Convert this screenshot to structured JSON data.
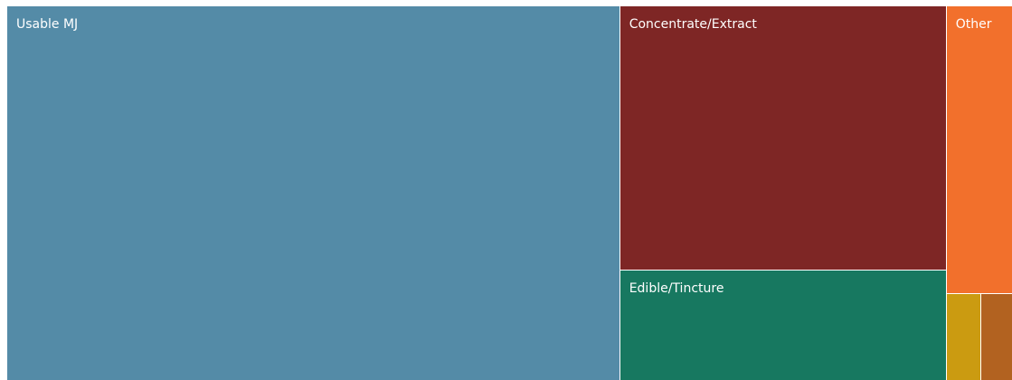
{
  "chart_data": {
    "type": "treemap",
    "title": "",
    "items": [
      {
        "name": "Usable MJ",
        "value": 61.0,
        "color": "#548ba7"
      },
      {
        "name": "Concentrate/Extract",
        "value": 23.0,
        "color": "#7e2625"
      },
      {
        "name": "Edible/Tincture",
        "value": 9.5,
        "color": "#177860"
      },
      {
        "name": "Other",
        "value": 5.0,
        "color": "#f2702c"
      },
      {
        "name": "",
        "value": 0.8,
        "color": "#cb9b11"
      },
      {
        "name": "",
        "value": 0.7,
        "color": "#b26220"
      }
    ]
  }
}
